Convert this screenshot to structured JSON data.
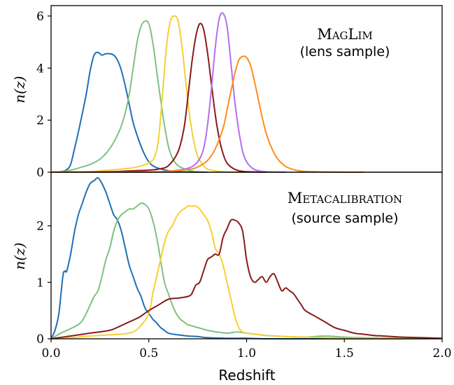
{
  "chart_data": [
    {
      "type": "line",
      "title": "",
      "annotation": {
        "line1_big1": "M",
        "line1_small1": "AG",
        "line1_big2": "L",
        "line1_small2": "IM",
        "line2": "(lens sample)"
      },
      "ylabel": "n(z)",
      "xlabel": "",
      "xlim": [
        0.0,
        2.0
      ],
      "ylim": [
        0,
        6.4
      ],
      "y_ticks": [
        "0",
        "2",
        "4",
        "6"
      ],
      "y_tick_values": [
        0,
        2,
        4,
        6
      ],
      "grid": false,
      "series": [
        {
          "color": "#1f6fb5",
          "x": [
            0.0,
            0.05,
            0.08,
            0.1,
            0.12,
            0.15,
            0.18,
            0.2,
            0.22,
            0.24,
            0.26,
            0.28,
            0.3,
            0.32,
            0.34,
            0.36,
            0.38,
            0.4,
            0.42,
            0.45,
            0.48,
            0.5,
            0.52,
            0.55,
            0.6,
            0.65,
            0.7,
            0.8
          ],
          "y": [
            0,
            0.02,
            0.1,
            0.3,
            0.9,
            1.9,
            3.0,
            3.9,
            4.5,
            4.6,
            4.5,
            4.55,
            4.55,
            4.5,
            4.3,
            3.9,
            3.3,
            2.6,
            1.9,
            1.2,
            0.65,
            0.4,
            0.25,
            0.15,
            0.06,
            0.02,
            0.01,
            0
          ]
        },
        {
          "color": "#7fc080",
          "x": [
            0.0,
            0.05,
            0.1,
            0.15,
            0.2,
            0.25,
            0.3,
            0.35,
            0.38,
            0.4,
            0.42,
            0.44,
            0.46,
            0.48,
            0.5,
            0.52,
            0.54,
            0.56,
            0.58,
            0.6,
            0.62,
            0.65,
            0.7,
            0.75,
            0.8
          ],
          "y": [
            0,
            0.02,
            0.08,
            0.18,
            0.3,
            0.5,
            0.9,
            1.6,
            2.3,
            3.0,
            4.0,
            5.0,
            5.6,
            5.8,
            5.7,
            5.0,
            3.9,
            2.8,
            1.8,
            1.0,
            0.55,
            0.25,
            0.08,
            0.02,
            0
          ]
        },
        {
          "color": "#f5d033",
          "x": [
            0.0,
            0.2,
            0.3,
            0.4,
            0.45,
            0.5,
            0.53,
            0.55,
            0.57,
            0.59,
            0.61,
            0.63,
            0.65,
            0.67,
            0.69,
            0.71,
            0.73,
            0.75,
            0.78,
            0.8,
            0.85,
            0.9,
            1.0
          ],
          "y": [
            0,
            0.02,
            0.08,
            0.15,
            0.22,
            0.35,
            0.6,
            1.3,
            3.0,
            4.8,
            5.8,
            6.0,
            5.8,
            4.8,
            3.4,
            2.1,
            1.2,
            0.6,
            0.25,
            0.12,
            0.04,
            0.01,
            0
          ]
        },
        {
          "color": "#8b1a1a",
          "x": [
            0.0,
            0.3,
            0.4,
            0.5,
            0.55,
            0.6,
            0.65,
            0.68,
            0.7,
            0.72,
            0.74,
            0.76,
            0.78,
            0.8,
            0.82,
            0.84,
            0.86,
            0.88,
            0.9,
            0.93,
            0.96,
            1.0,
            1.1
          ],
          "y": [
            0,
            0.02,
            0.05,
            0.08,
            0.12,
            0.25,
            0.8,
            1.7,
            2.9,
            4.2,
            5.2,
            5.7,
            5.5,
            4.6,
            3.4,
            2.2,
            1.3,
            0.7,
            0.35,
            0.15,
            0.06,
            0.02,
            0
          ]
        },
        {
          "color": "#b36ef0",
          "x": [
            0.0,
            0.5,
            0.6,
            0.7,
            0.75,
            0.78,
            0.8,
            0.82,
            0.84,
            0.86,
            0.88,
            0.9,
            0.92,
            0.94,
            0.96,
            0.98,
            1.0,
            1.03,
            1.06,
            1.1,
            1.2
          ],
          "y": [
            0,
            0.01,
            0.04,
            0.15,
            0.4,
            0.9,
            1.8,
            3.2,
            4.8,
            5.9,
            6.1,
            5.6,
            4.2,
            2.7,
            1.6,
            0.8,
            0.4,
            0.15,
            0.06,
            0.02,
            0
          ]
        },
        {
          "color": "#ff8c1a",
          "x": [
            0.0,
            0.5,
            0.6,
            0.7,
            0.75,
            0.8,
            0.84,
            0.88,
            0.9,
            0.92,
            0.94,
            0.96,
            0.98,
            1.0,
            1.02,
            1.04,
            1.06,
            1.08,
            1.1,
            1.13,
            1.16,
            1.2,
            1.25,
            1.3,
            1.4,
            1.5,
            1.6
          ],
          "y": [
            0,
            0.01,
            0.04,
            0.1,
            0.2,
            0.45,
            0.9,
            1.7,
            2.4,
            3.1,
            3.8,
            4.3,
            4.45,
            4.4,
            4.1,
            3.5,
            2.8,
            2.1,
            1.5,
            0.9,
            0.5,
            0.22,
            0.08,
            0.03,
            0.01,
            0,
            0
          ]
        }
      ]
    },
    {
      "type": "line",
      "title": "",
      "annotation": {
        "line1_big1": "M",
        "line1_small1": "ETACALIBRATION",
        "line2": "(source sample)"
      },
      "ylabel": "n(z)",
      "xlabel": "Redshift",
      "xlim": [
        0.0,
        2.0
      ],
      "ylim": [
        0,
        2.95
      ],
      "x_ticks": [
        "0.0",
        "0.5",
        "1.0",
        "1.5",
        "2.0"
      ],
      "x_tick_values": [
        0.0,
        0.5,
        1.0,
        1.5,
        2.0
      ],
      "y_ticks": [
        "0",
        "1",
        "2"
      ],
      "y_tick_values": [
        0,
        1,
        2
      ],
      "grid": false,
      "series": [
        {
          "color": "#1f6fb5",
          "x": [
            0.0,
            0.02,
            0.04,
            0.06,
            0.07,
            0.08,
            0.1,
            0.12,
            0.14,
            0.16,
            0.18,
            0.2,
            0.22,
            0.24,
            0.26,
            0.28,
            0.3,
            0.32,
            0.34,
            0.36,
            0.38,
            0.4,
            0.42,
            0.44,
            0.46,
            0.48,
            0.5,
            0.52,
            0.54,
            0.56,
            0.58,
            0.6,
            0.65,
            0.7,
            0.75,
            0.8,
            0.9,
            1.0,
            1.1,
            1.2,
            1.3,
            1.4,
            1.5,
            1.6,
            2.0
          ],
          "y": [
            0,
            0.15,
            0.45,
            1.1,
            1.2,
            1.2,
            1.5,
            1.9,
            2.2,
            2.4,
            2.6,
            2.75,
            2.8,
            2.85,
            2.75,
            2.6,
            2.4,
            2.2,
            2.1,
            1.9,
            1.6,
            1.3,
            1.1,
            0.9,
            0.75,
            0.55,
            0.45,
            0.35,
            0.28,
            0.2,
            0.15,
            0.1,
            0.07,
            0.05,
            0.04,
            0.02,
            0.01,
            0.01,
            0,
            0,
            0,
            0,
            0,
            0,
            0
          ]
        },
        {
          "color": "#7fc080",
          "x": [
            0.0,
            0.05,
            0.1,
            0.15,
            0.18,
            0.2,
            0.22,
            0.24,
            0.26,
            0.28,
            0.3,
            0.32,
            0.34,
            0.36,
            0.38,
            0.4,
            0.42,
            0.44,
            0.46,
            0.48,
            0.5,
            0.52,
            0.54,
            0.56,
            0.58,
            0.6,
            0.62,
            0.64,
            0.66,
            0.68,
            0.7,
            0.75,
            0.8,
            0.85,
            0.9,
            0.95,
            1.0,
            1.05,
            1.1,
            1.2,
            1.3,
            1.4,
            1.5,
            1.6,
            2.0
          ],
          "y": [
            0,
            0.1,
            0.18,
            0.28,
            0.45,
            0.6,
            0.75,
            0.85,
            1.1,
            1.4,
            1.6,
            1.9,
            2.1,
            2.2,
            2.25,
            2.3,
            2.3,
            2.35,
            2.4,
            2.38,
            2.3,
            2.1,
            1.8,
            1.4,
            1.0,
            0.8,
            0.6,
            0.45,
            0.35,
            0.3,
            0.25,
            0.2,
            0.15,
            0.12,
            0.1,
            0.12,
            0.1,
            0.08,
            0.06,
            0.04,
            0.03,
            0.05,
            0.03,
            0.02,
            0
          ]
        },
        {
          "color": "#f5d033",
          "x": [
            0.0,
            0.1,
            0.2,
            0.3,
            0.4,
            0.45,
            0.5,
            0.52,
            0.54,
            0.56,
            0.58,
            0.6,
            0.62,
            0.64,
            0.66,
            0.68,
            0.7,
            0.72,
            0.74,
            0.76,
            0.78,
            0.8,
            0.82,
            0.84,
            0.86,
            0.88,
            0.9,
            0.92,
            0.94,
            0.96,
            0.98,
            1.0,
            1.05,
            1.1,
            1.2,
            1.3,
            1.4,
            1.5,
            1.6,
            2.0
          ],
          "y": [
            0,
            0.02,
            0.05,
            0.07,
            0.1,
            0.2,
            0.45,
            0.8,
            1.1,
            1.4,
            1.7,
            1.9,
            2.0,
            2.15,
            2.25,
            2.3,
            2.35,
            2.35,
            2.35,
            2.3,
            2.2,
            2.1,
            1.9,
            1.6,
            1.5,
            1.3,
            1.0,
            0.7,
            0.4,
            0.2,
            0.12,
            0.1,
            0.08,
            0.06,
            0.04,
            0.03,
            0.02,
            0.01,
            0.01,
            0
          ]
        },
        {
          "color": "#8b1a1a",
          "x": [
            0.0,
            0.1,
            0.2,
            0.3,
            0.35,
            0.4,
            0.45,
            0.5,
            0.55,
            0.6,
            0.65,
            0.7,
            0.72,
            0.74,
            0.76,
            0.78,
            0.8,
            0.82,
            0.84,
            0.86,
            0.88,
            0.9,
            0.92,
            0.94,
            0.96,
            0.98,
            1.0,
            1.02,
            1.04,
            1.06,
            1.08,
            1.1,
            1.12,
            1.14,
            1.16,
            1.18,
            1.2,
            1.22,
            1.24,
            1.26,
            1.28,
            1.3,
            1.35,
            1.4,
            1.45,
            1.5,
            1.55,
            1.6,
            1.65,
            1.7,
            1.8,
            1.9,
            2.0
          ],
          "y": [
            0,
            0.05,
            0.1,
            0.15,
            0.22,
            0.3,
            0.38,
            0.5,
            0.6,
            0.7,
            0.72,
            0.75,
            0.8,
            0.95,
            1.0,
            1.2,
            1.4,
            1.45,
            1.5,
            1.5,
            1.8,
            1.95,
            2.1,
            2.1,
            2.05,
            1.9,
            1.4,
            1.1,
            1.0,
            1.05,
            1.1,
            1.0,
            1.1,
            1.15,
            1.0,
            0.85,
            0.9,
            0.85,
            0.8,
            0.7,
            0.6,
            0.5,
            0.4,
            0.3,
            0.2,
            0.15,
            0.1,
            0.08,
            0.06,
            0.05,
            0.03,
            0.02,
            0.01
          ]
        }
      ]
    }
  ]
}
